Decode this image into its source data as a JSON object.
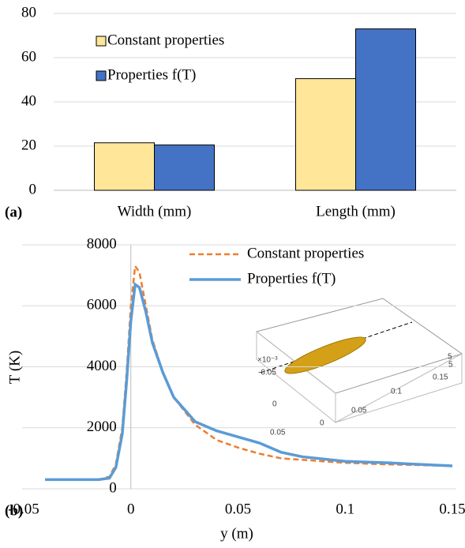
{
  "chart_data": [
    {
      "type": "bar",
      "panel_label": "(a)",
      "categories": [
        "Width (mm)",
        "Length (mm)"
      ],
      "series": [
        {
          "name": "Constant properties",
          "color": "#ffe699",
          "values": [
            21.5,
            50.5
          ]
        },
        {
          "name": "Properties f(T)",
          "color": "#4472c4",
          "values": [
            20.5,
            73
          ]
        }
      ],
      "ylim": [
        0,
        80
      ],
      "yticks": [
        0,
        20,
        40,
        60,
        80
      ],
      "grid": true,
      "legend": "top-left"
    },
    {
      "type": "line",
      "panel_label": "(b)",
      "x_label": "y (m)",
      "y_label": "T (K)",
      "x": [
        -0.04,
        -0.015,
        -0.01,
        -0.007,
        -0.004,
        -0.002,
        0,
        0.002,
        0.004,
        0.007,
        0.01,
        0.015,
        0.02,
        0.03,
        0.04,
        0.05,
        0.06,
        0.07,
        0.08,
        0.1,
        0.12,
        0.15
      ],
      "series": [
        {
          "name": "Constant properties",
          "color": "#ed7d31",
          "dashed": true,
          "values": [
            300,
            300,
            400,
            800,
            2000,
            3800,
            6000,
            7300,
            7100,
            6000,
            4900,
            3800,
            3000,
            2100,
            1600,
            1350,
            1150,
            1000,
            950,
            850,
            800,
            750
          ]
        },
        {
          "name": "Properties f(T)",
          "color": "#5b9bd5",
          "dashed": false,
          "values": [
            300,
            300,
            350,
            700,
            1800,
            3500,
            5500,
            6700,
            6600,
            5800,
            4800,
            3800,
            3000,
            2200,
            1900,
            1700,
            1500,
            1200,
            1050,
            900,
            850,
            750
          ]
        }
      ],
      "xlim": [
        -0.05,
        0.15
      ],
      "xticks": [
        -0.05,
        0,
        0.05,
        0.1,
        0.15
      ],
      "ylim": [
        0,
        8000
      ],
      "yticks": [
        0,
        2000,
        4000,
        6000,
        8000
      ],
      "grid": true,
      "legend": "top-right",
      "inset_labels": [
        "×10⁻³",
        "-0.05",
        "0",
        "0.05",
        "0",
        "0.05",
        "0.1",
        "0.15",
        "5",
        "5"
      ]
    }
  ]
}
